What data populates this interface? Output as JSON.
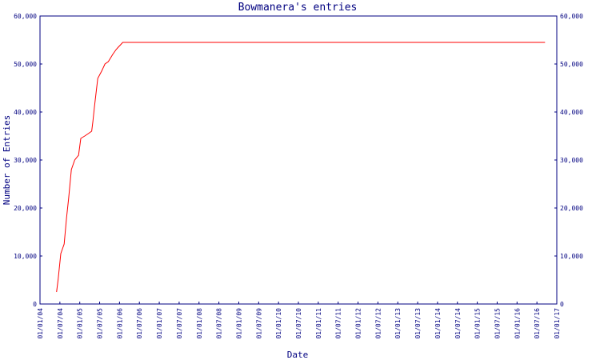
{
  "chart_data": {
    "type": "line",
    "title": "Bowmanera's entries",
    "xlabel": "Date",
    "ylabel": "Number of Entries",
    "ylim": [
      0,
      60000
    ],
    "xlim": [
      "2004-01-01",
      "2017-01-01"
    ],
    "grid": false,
    "colors": {
      "axis": "#000080",
      "line": "#ff0000",
      "background": "#ffffff"
    },
    "y_ticks": [
      0,
      10000,
      20000,
      30000,
      40000,
      50000,
      60000
    ],
    "y_tick_labels": [
      "0",
      "10,000",
      "20,000",
      "30,000",
      "40,000",
      "50,000",
      "60,000"
    ],
    "x_tick_labels": [
      "01/01/04",
      "01/07/04",
      "01/01/05",
      "01/07/05",
      "01/01/06",
      "01/07/06",
      "01/01/07",
      "01/07/07",
      "01/01/08",
      "01/07/08",
      "01/01/09",
      "01/07/09",
      "01/01/10",
      "01/07/10",
      "01/01/11",
      "01/07/11",
      "01/01/12",
      "01/07/12",
      "01/01/13",
      "01/07/13",
      "01/01/14",
      "01/07/14",
      "01/01/15",
      "01/07/15",
      "01/01/16",
      "01/07/16",
      "01/01/17"
    ],
    "series": [
      {
        "x": [
          "2004-06-01",
          "2004-06-15",
          "2004-07-10",
          "2004-08-10",
          "2004-09-01",
          "2004-09-20",
          "2004-10-15",
          "2004-11-15",
          "2004-12-20",
          "2005-01-10",
          "2005-02-15",
          "2005-03-20",
          "2005-04-20",
          "2005-05-01",
          "2005-05-15",
          "2005-06-15",
          "2005-07-20",
          "2005-08-20",
          "2005-09-20",
          "2005-10-30",
          "2005-11-30",
          "2005-12-20",
          "2006-01-10",
          "2006-01-30",
          "2006-02-20",
          "2006-03-20",
          "2006-04-15",
          "2016-09-15"
        ],
        "y": [
          2500,
          5000,
          10500,
          12500,
          18000,
          22000,
          28000,
          30000,
          31000,
          34500,
          35000,
          35500,
          36000,
          38000,
          41000,
          47000,
          48500,
          50000,
          50500,
          52000,
          53000,
          53500,
          54000,
          54500,
          54500,
          54500,
          54500,
          54500
        ]
      }
    ]
  }
}
